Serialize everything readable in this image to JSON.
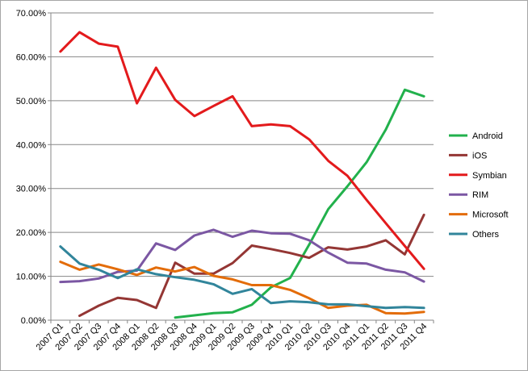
{
  "chart_data": {
    "type": "line",
    "categories": [
      "2007 Q1",
      "2007 Q2",
      "2007 Q3",
      "2007 Q4",
      "2008 Q1",
      "2008 Q2",
      "2008 Q3",
      "2008 Q4",
      "2009 Q1",
      "2009 Q2",
      "2009 Q3",
      "2009 Q4",
      "2010 Q1",
      "2010 Q2",
      "2010 Q3",
      "2010 Q4",
      "2011 Q1",
      "2011 Q2",
      "2011 Q3",
      "2011 Q4"
    ],
    "ylim": [
      0,
      70
    ],
    "yticks": [
      "0.00%",
      "10.00%",
      "20.00%",
      "30.00%",
      "40.00%",
      "50.00%",
      "60.00%",
      "70.00%"
    ],
    "grid": "horizontal",
    "legend_position": "right",
    "series": [
      {
        "name": "Android",
        "color": "#22b14c",
        "values": [
          null,
          null,
          null,
          null,
          null,
          null,
          0.6,
          1.1,
          1.6,
          1.8,
          3.5,
          7.5,
          9.6,
          17.2,
          25.3,
          30.5,
          36.0,
          43.4,
          52.5,
          51.0
        ]
      },
      {
        "name": "iOS",
        "color": "#943634",
        "values": [
          null,
          1.0,
          3.3,
          5.1,
          4.6,
          2.8,
          13.1,
          10.6,
          10.6,
          13.0,
          17.0,
          16.2,
          15.3,
          14.2,
          16.6,
          16.1,
          16.8,
          18.2,
          15.0,
          24.0
        ]
      },
      {
        "name": "Symbian",
        "color": "#e31a1c",
        "values": [
          61.2,
          65.6,
          63.0,
          62.3,
          49.4,
          57.5,
          50.2,
          46.5,
          48.8,
          51.0,
          44.2,
          44.6,
          44.2,
          41.2,
          36.3,
          32.9,
          27.4,
          22.1,
          16.9,
          11.7
        ]
      },
      {
        "name": "RIM",
        "color": "#7b57a3",
        "values": [
          8.7,
          8.9,
          9.5,
          11.0,
          11.3,
          17.5,
          16.0,
          19.3,
          20.6,
          19.0,
          20.4,
          19.8,
          19.7,
          18.2,
          15.4,
          13.1,
          12.9,
          11.5,
          10.9,
          8.8
        ]
      },
      {
        "name": "Microsoft",
        "color": "#e36c09",
        "values": [
          13.3,
          11.5,
          12.7,
          11.6,
          10.3,
          12.0,
          11.1,
          12.1,
          10.1,
          9.3,
          8.0,
          8.0,
          6.9,
          5.0,
          2.8,
          3.3,
          3.5,
          1.6,
          1.5,
          1.9
        ]
      },
      {
        "name": "Others",
        "color": "#31859b",
        "values": [
          16.8,
          12.9,
          11.5,
          9.6,
          11.6,
          10.5,
          9.8,
          9.2,
          8.2,
          6.0,
          7.1,
          3.9,
          4.3,
          4.1,
          3.6,
          3.6,
          3.2,
          2.8,
          3.0,
          2.8
        ]
      }
    ]
  }
}
